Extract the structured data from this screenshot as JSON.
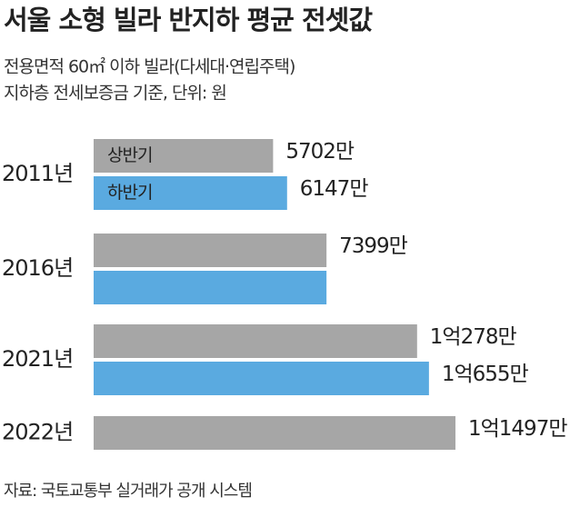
{
  "chart_data": {
    "type": "bar",
    "orientation": "horizontal",
    "title": "서울 소형 빌라 반지하 평균 전셋값",
    "subtitle": [
      "전용면적 60㎡ 이하 빌라(다세대·연립주택)",
      "지하층 전세보증금 기준, 단위: 원"
    ],
    "categories": [
      "2011년",
      "2016년",
      "2021년",
      "2022년"
    ],
    "series": [
      {
        "name": "상반기",
        "color": "#a6a6a6",
        "values": [
          5702,
          7399,
          10278,
          11497
        ],
        "value_labels": [
          "5702만",
          "7399만",
          "1억278만",
          "1억1497만"
        ]
      },
      {
        "name": "하반기",
        "color": "#5aaae0",
        "values": [
          6147,
          7399,
          10655,
          null
        ],
        "value_labels": [
          "6147만",
          null,
          "1억655만",
          null
        ]
      }
    ],
    "source": "자료: 국토교통부 실거래가 공개 시스템"
  }
}
